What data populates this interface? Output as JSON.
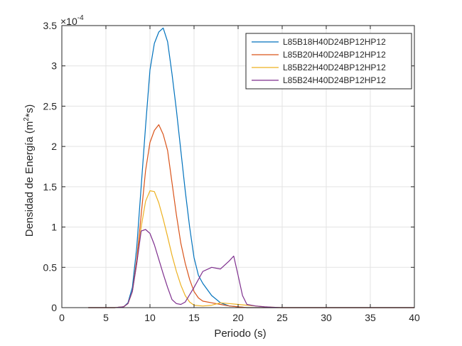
{
  "chart_data": {
    "type": "line",
    "title": "",
    "xlabel": "Periodo (s)",
    "ylabel_main": "Densidad de Energía (m",
    "ylabel_sup": "2",
    "ylabel_tail": "*s)",
    "y_exponent_base": "×10",
    "y_exponent_power": "-4",
    "xlim": [
      0,
      40
    ],
    "ylim": [
      0,
      3.5
    ],
    "y_scale_factor": 0.0001,
    "xticks": [
      0,
      5,
      10,
      15,
      20,
      25,
      30,
      35,
      40
    ],
    "yticks": [
      0,
      0.5,
      1,
      1.5,
      2,
      2.5,
      3,
      3.5
    ],
    "xtick_labels": [
      "0",
      "5",
      "10",
      "15",
      "20",
      "25",
      "30",
      "35",
      "40"
    ],
    "ytick_labels": [
      "0",
      "0.5",
      "1",
      "1.5",
      "2",
      "2.5",
      "3",
      "3.5"
    ],
    "grid": true,
    "legend_position": "top-right",
    "series": [
      {
        "name": "L85B18H40D24BP12HP12",
        "color": "#0072BD",
        "x": [
          3,
          6,
          7,
          7.5,
          8,
          8.5,
          9,
          9.5,
          10,
          10.5,
          11,
          11.5,
          12,
          12.5,
          13,
          13.5,
          14,
          14.5,
          15,
          15.5,
          16,
          17,
          18,
          19,
          20,
          21,
          23,
          25,
          30,
          35,
          40
        ],
        "values": [
          0,
          0,
          0.01,
          0.06,
          0.25,
          0.75,
          1.5,
          2.25,
          2.95,
          3.28,
          3.42,
          3.47,
          3.3,
          2.9,
          2.45,
          1.95,
          1.45,
          1.0,
          0.62,
          0.4,
          0.3,
          0.15,
          0.06,
          0.02,
          0.01,
          0,
          0,
          0,
          0,
          0,
          0
        ]
      },
      {
        "name": "L85B20H40D24BP12HP12",
        "color": "#D95319",
        "x": [
          3,
          6,
          7,
          7.5,
          8,
          8.5,
          9,
          9.5,
          10,
          10.5,
          11,
          11.5,
          12,
          12.5,
          13,
          13.5,
          14,
          14.5,
          15,
          15.5,
          16,
          17,
          18,
          19,
          20,
          21,
          23,
          25,
          30,
          35,
          40
        ],
        "values": [
          0,
          0,
          0.01,
          0.05,
          0.2,
          0.6,
          1.15,
          1.7,
          2.05,
          2.2,
          2.27,
          2.15,
          1.95,
          1.55,
          1.15,
          0.8,
          0.55,
          0.35,
          0.2,
          0.12,
          0.08,
          0.06,
          0.04,
          0.02,
          0.01,
          0,
          0,
          0,
          0,
          0,
          0
        ]
      },
      {
        "name": "L85B22H40D24BP12HP12",
        "color": "#EDB120",
        "x": [
          3,
          6,
          7,
          7.5,
          8,
          8.5,
          9,
          9.5,
          10,
          10.5,
          11,
          11.5,
          12,
          12.5,
          13,
          13.5,
          14,
          14.5,
          15,
          16,
          17,
          18,
          19,
          20,
          21,
          22,
          23,
          25,
          30,
          35,
          40
        ],
        "values": [
          0,
          0,
          0.01,
          0.05,
          0.2,
          0.55,
          1.0,
          1.32,
          1.45,
          1.44,
          1.3,
          1.1,
          0.88,
          0.65,
          0.45,
          0.28,
          0.15,
          0.07,
          0.03,
          0.02,
          0.03,
          0.06,
          0.05,
          0.04,
          0.03,
          0.02,
          0.01,
          0,
          0,
          0,
          0
        ]
      },
      {
        "name": "L85B24H40D24BP12HP12",
        "color": "#7E2F8E",
        "x": [
          3,
          6,
          7,
          7.5,
          8,
          8.5,
          9,
          9.5,
          10,
          10.5,
          11,
          11.5,
          12,
          12.5,
          13,
          13.5,
          14,
          15,
          16,
          17,
          18,
          19,
          19.5,
          20,
          20.5,
          21,
          22,
          23,
          25,
          30,
          40
        ],
        "values": [
          0,
          0,
          0.01,
          0.05,
          0.2,
          0.55,
          0.95,
          0.97,
          0.92,
          0.78,
          0.6,
          0.42,
          0.25,
          0.1,
          0.05,
          0.04,
          0.07,
          0.25,
          0.45,
          0.5,
          0.48,
          0.58,
          0.64,
          0.4,
          0.15,
          0.04,
          0.02,
          0.01,
          0,
          0,
          0
        ]
      }
    ]
  }
}
